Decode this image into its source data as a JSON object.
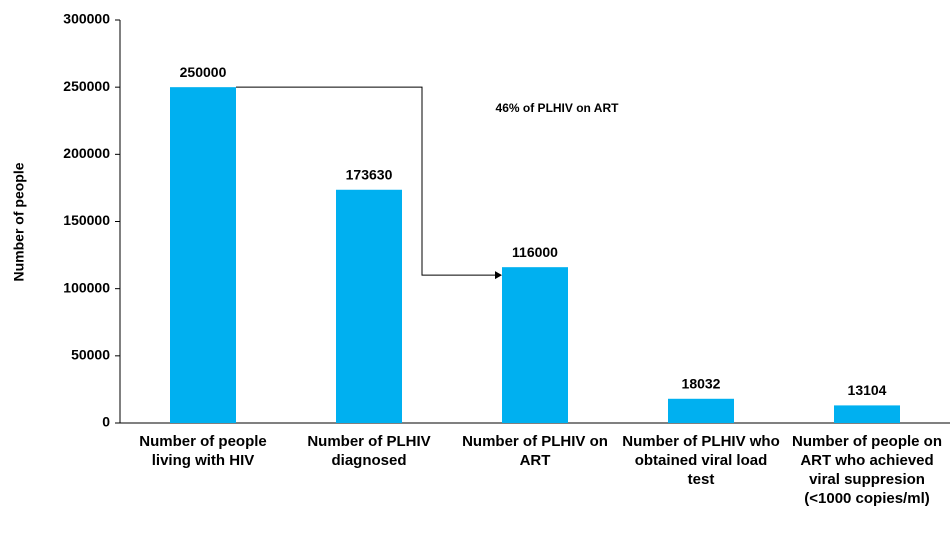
{
  "chart_data": {
    "type": "bar",
    "y_label": "Number of people",
    "categories": [
      "Number of people living with HIV",
      "Number of PLHIV diagnosed",
      "Number of PLHIV on ART",
      "Number of PLHIV who obtained viral load test",
      "Number of people on ART who achieved viral suppresion (<1000 copies/ml)"
    ],
    "values": [
      250000,
      173630,
      116000,
      18032,
      13104
    ],
    "color": "#00b0f0",
    "ylim": [
      0,
      300000
    ],
    "yticks": [
      0,
      50000,
      100000,
      150000,
      200000,
      250000,
      300000
    ],
    "annotation": "46% of PLHIV on ART"
  }
}
